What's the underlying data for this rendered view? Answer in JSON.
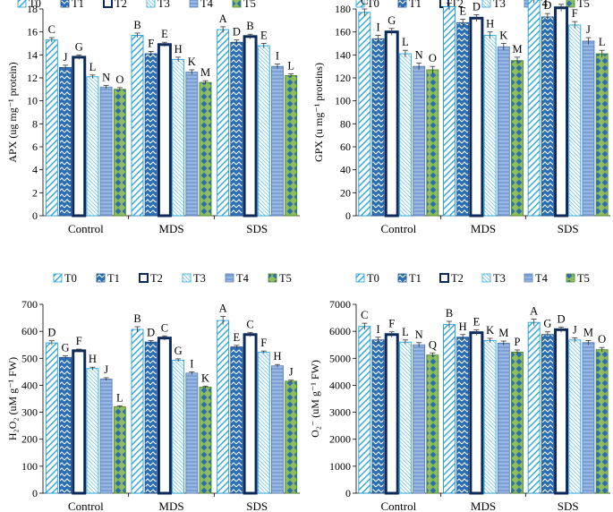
{
  "legend": [
    "T0",
    "T1",
    "T2",
    "T3",
    "T4",
    "T5"
  ],
  "series_styles": [
    {
      "fill": "#ffffff",
      "pattern": "diag-cyan",
      "stroke": "#1e9ed8"
    },
    {
      "fill": "#2a6fb5",
      "pattern": "zigzag",
      "stroke": "#1f4f8a"
    },
    {
      "fill": "#ffffff",
      "pattern": "outline-navy",
      "stroke": "#0d2a5c"
    },
    {
      "fill": "#e9f6fc",
      "pattern": "diag-fine",
      "stroke": "#29a8de"
    },
    {
      "fill": "#7aa0d6",
      "pattern": "hatch",
      "stroke": "#5a7fb8"
    },
    {
      "fill": "#8fbf5a",
      "pattern": "diamonds",
      "stroke": "#4f8a2a"
    }
  ],
  "chart_data": [
    {
      "type": "bar",
      "ylabel": "APX (ug mg⁻¹ protein)",
      "categories": [
        "Control",
        "MDS",
        "SDS"
      ],
      "ylim": [
        0,
        18
      ],
      "yticks": [
        0,
        2,
        4,
        6,
        8,
        10,
        12,
        14,
        16,
        18
      ],
      "series": [
        {
          "name": "T0",
          "values": [
            15.3,
            15.7,
            16.2
          ],
          "errors": [
            0.2,
            0.2,
            0.25
          ],
          "letters": [
            "C",
            "B",
            "A"
          ]
        },
        {
          "name": "T1",
          "values": [
            12.9,
            14.1,
            15.1
          ],
          "errors": [
            0.2,
            0.2,
            0.2
          ],
          "letters": [
            "J",
            "F",
            "D"
          ]
        },
        {
          "name": "T2",
          "values": [
            13.8,
            14.9,
            15.6
          ],
          "errors": [
            0.2,
            0.2,
            0.2
          ],
          "letters": [
            "G",
            "E",
            "B"
          ]
        },
        {
          "name": "T3",
          "values": [
            12.1,
            13.6,
            14.8
          ],
          "errors": [
            0.15,
            0.2,
            0.2
          ],
          "letters": [
            "L",
            "H",
            "E"
          ]
        },
        {
          "name": "T4",
          "values": [
            11.2,
            12.5,
            13.0
          ],
          "errors": [
            0.15,
            0.2,
            0.2
          ],
          "letters": [
            "N",
            "K",
            "I"
          ]
        },
        {
          "name": "T5",
          "values": [
            11.0,
            11.6,
            12.2
          ],
          "errors": [
            0.15,
            0.15,
            0.15
          ],
          "letters": [
            "O",
            "M",
            "L"
          ]
        }
      ]
    },
    {
      "type": "bar",
      "ylabel": "GPX (u mg⁻¹ proteins)",
      "categories": [
        "Control",
        "MDS",
        "SDS"
      ],
      "ylim": [
        0,
        180
      ],
      "yticks": [
        0,
        20,
        40,
        60,
        80,
        100,
        120,
        140,
        160,
        180
      ],
      "series": [
        {
          "name": "T0",
          "values": [
            177,
            182,
            188
          ],
          "errors": [
            3,
            3,
            3
          ],
          "letters": [
            "C",
            "B",
            "A"
          ]
        },
        {
          "name": "T1",
          "values": [
            154,
            168,
            173
          ],
          "errors": [
            3,
            3,
            3
          ],
          "letters": [
            "I",
            "E",
            "D"
          ]
        },
        {
          "name": "T2",
          "values": [
            160,
            172,
            181
          ],
          "errors": [
            3,
            3,
            3
          ],
          "letters": [
            "G",
            "D",
            "B"
          ]
        },
        {
          "name": "T3",
          "values": [
            141,
            157,
            166
          ],
          "errors": [
            3,
            3,
            3
          ],
          "letters": [
            "L",
            "H",
            "F"
          ]
        },
        {
          "name": "T4",
          "values": [
            130,
            147,
            152
          ],
          "errors": [
            3,
            3,
            3
          ],
          "letters": [
            "N",
            "K",
            "J"
          ]
        },
        {
          "name": "T5",
          "values": [
            127,
            135,
            141
          ],
          "errors": [
            3,
            3,
            3
          ],
          "letters": [
            "O",
            "M",
            "L"
          ]
        }
      ]
    },
    {
      "type": "bar",
      "ylabel": "H₂O₂ (uM g⁻¹ FW)",
      "categories": [
        "Control",
        "MDS",
        "SDS"
      ],
      "ylim": [
        0,
        700
      ],
      "yticks": [
        0,
        100,
        200,
        300,
        400,
        500,
        600,
        700
      ],
      "series": [
        {
          "name": "T0",
          "values": [
            557,
            607,
            640
          ],
          "errors": [
            8,
            10,
            15
          ],
          "letters": [
            "D",
            "B",
            "A"
          ]
        },
        {
          "name": "T1",
          "values": [
            503,
            560,
            542
          ],
          "errors": [
            6,
            6,
            6
          ],
          "letters": [
            "G",
            "D",
            "E"
          ]
        },
        {
          "name": "T2",
          "values": [
            528,
            575,
            588
          ],
          "errors": [
            6,
            8,
            8
          ],
          "letters": [
            "F",
            "C",
            "C"
          ]
        },
        {
          "name": "T3",
          "values": [
            462,
            493,
            522
          ],
          "errors": [
            5,
            5,
            5
          ],
          "letters": [
            "H",
            "G",
            "F"
          ]
        },
        {
          "name": "T4",
          "values": [
            423,
            445,
            472
          ],
          "errors": [
            5,
            5,
            5
          ],
          "letters": [
            "J",
            "I",
            "H"
          ]
        },
        {
          "name": "T5",
          "values": [
            320,
            393,
            415
          ],
          "errors": [
            4,
            4,
            4
          ],
          "letters": [
            "L",
            "K",
            "J"
          ]
        }
      ]
    },
    {
      "type": "bar",
      "ylabel": "O₂⁻ (uM g⁻¹ FW)",
      "categories": [
        "Control",
        "MDS",
        "SDS"
      ],
      "ylim": [
        0,
        7000
      ],
      "yticks": [
        0,
        1000,
        2000,
        3000,
        4000,
        5000,
        6000,
        7000
      ],
      "series": [
        {
          "name": "T0",
          "values": [
            6180,
            6250,
            6330
          ],
          "errors": [
            120,
            120,
            120
          ],
          "letters": [
            "C",
            "B",
            "A"
          ]
        },
        {
          "name": "T1",
          "values": [
            5680,
            5780,
            5880
          ],
          "errors": [
            100,
            100,
            100
          ],
          "letters": [
            "I",
            "H",
            "G"
          ]
        },
        {
          "name": "T2",
          "values": [
            5880,
            5950,
            6060
          ],
          "errors": [
            100,
            100,
            100
          ],
          "letters": [
            "F",
            "E",
            "D"
          ]
        },
        {
          "name": "T3",
          "values": [
            5600,
            5660,
            5680
          ],
          "errors": [
            80,
            80,
            80
          ],
          "letters": [
            "L",
            "K",
            "J"
          ]
        },
        {
          "name": "T4",
          "values": [
            5500,
            5560,
            5580
          ],
          "errors": [
            80,
            80,
            80
          ],
          "letters": [
            "N",
            "M",
            "M"
          ]
        },
        {
          "name": "T5",
          "values": [
            5120,
            5230,
            5320
          ],
          "errors": [
            80,
            80,
            80
          ],
          "letters": [
            "Q",
            "P",
            "O"
          ]
        }
      ]
    }
  ]
}
